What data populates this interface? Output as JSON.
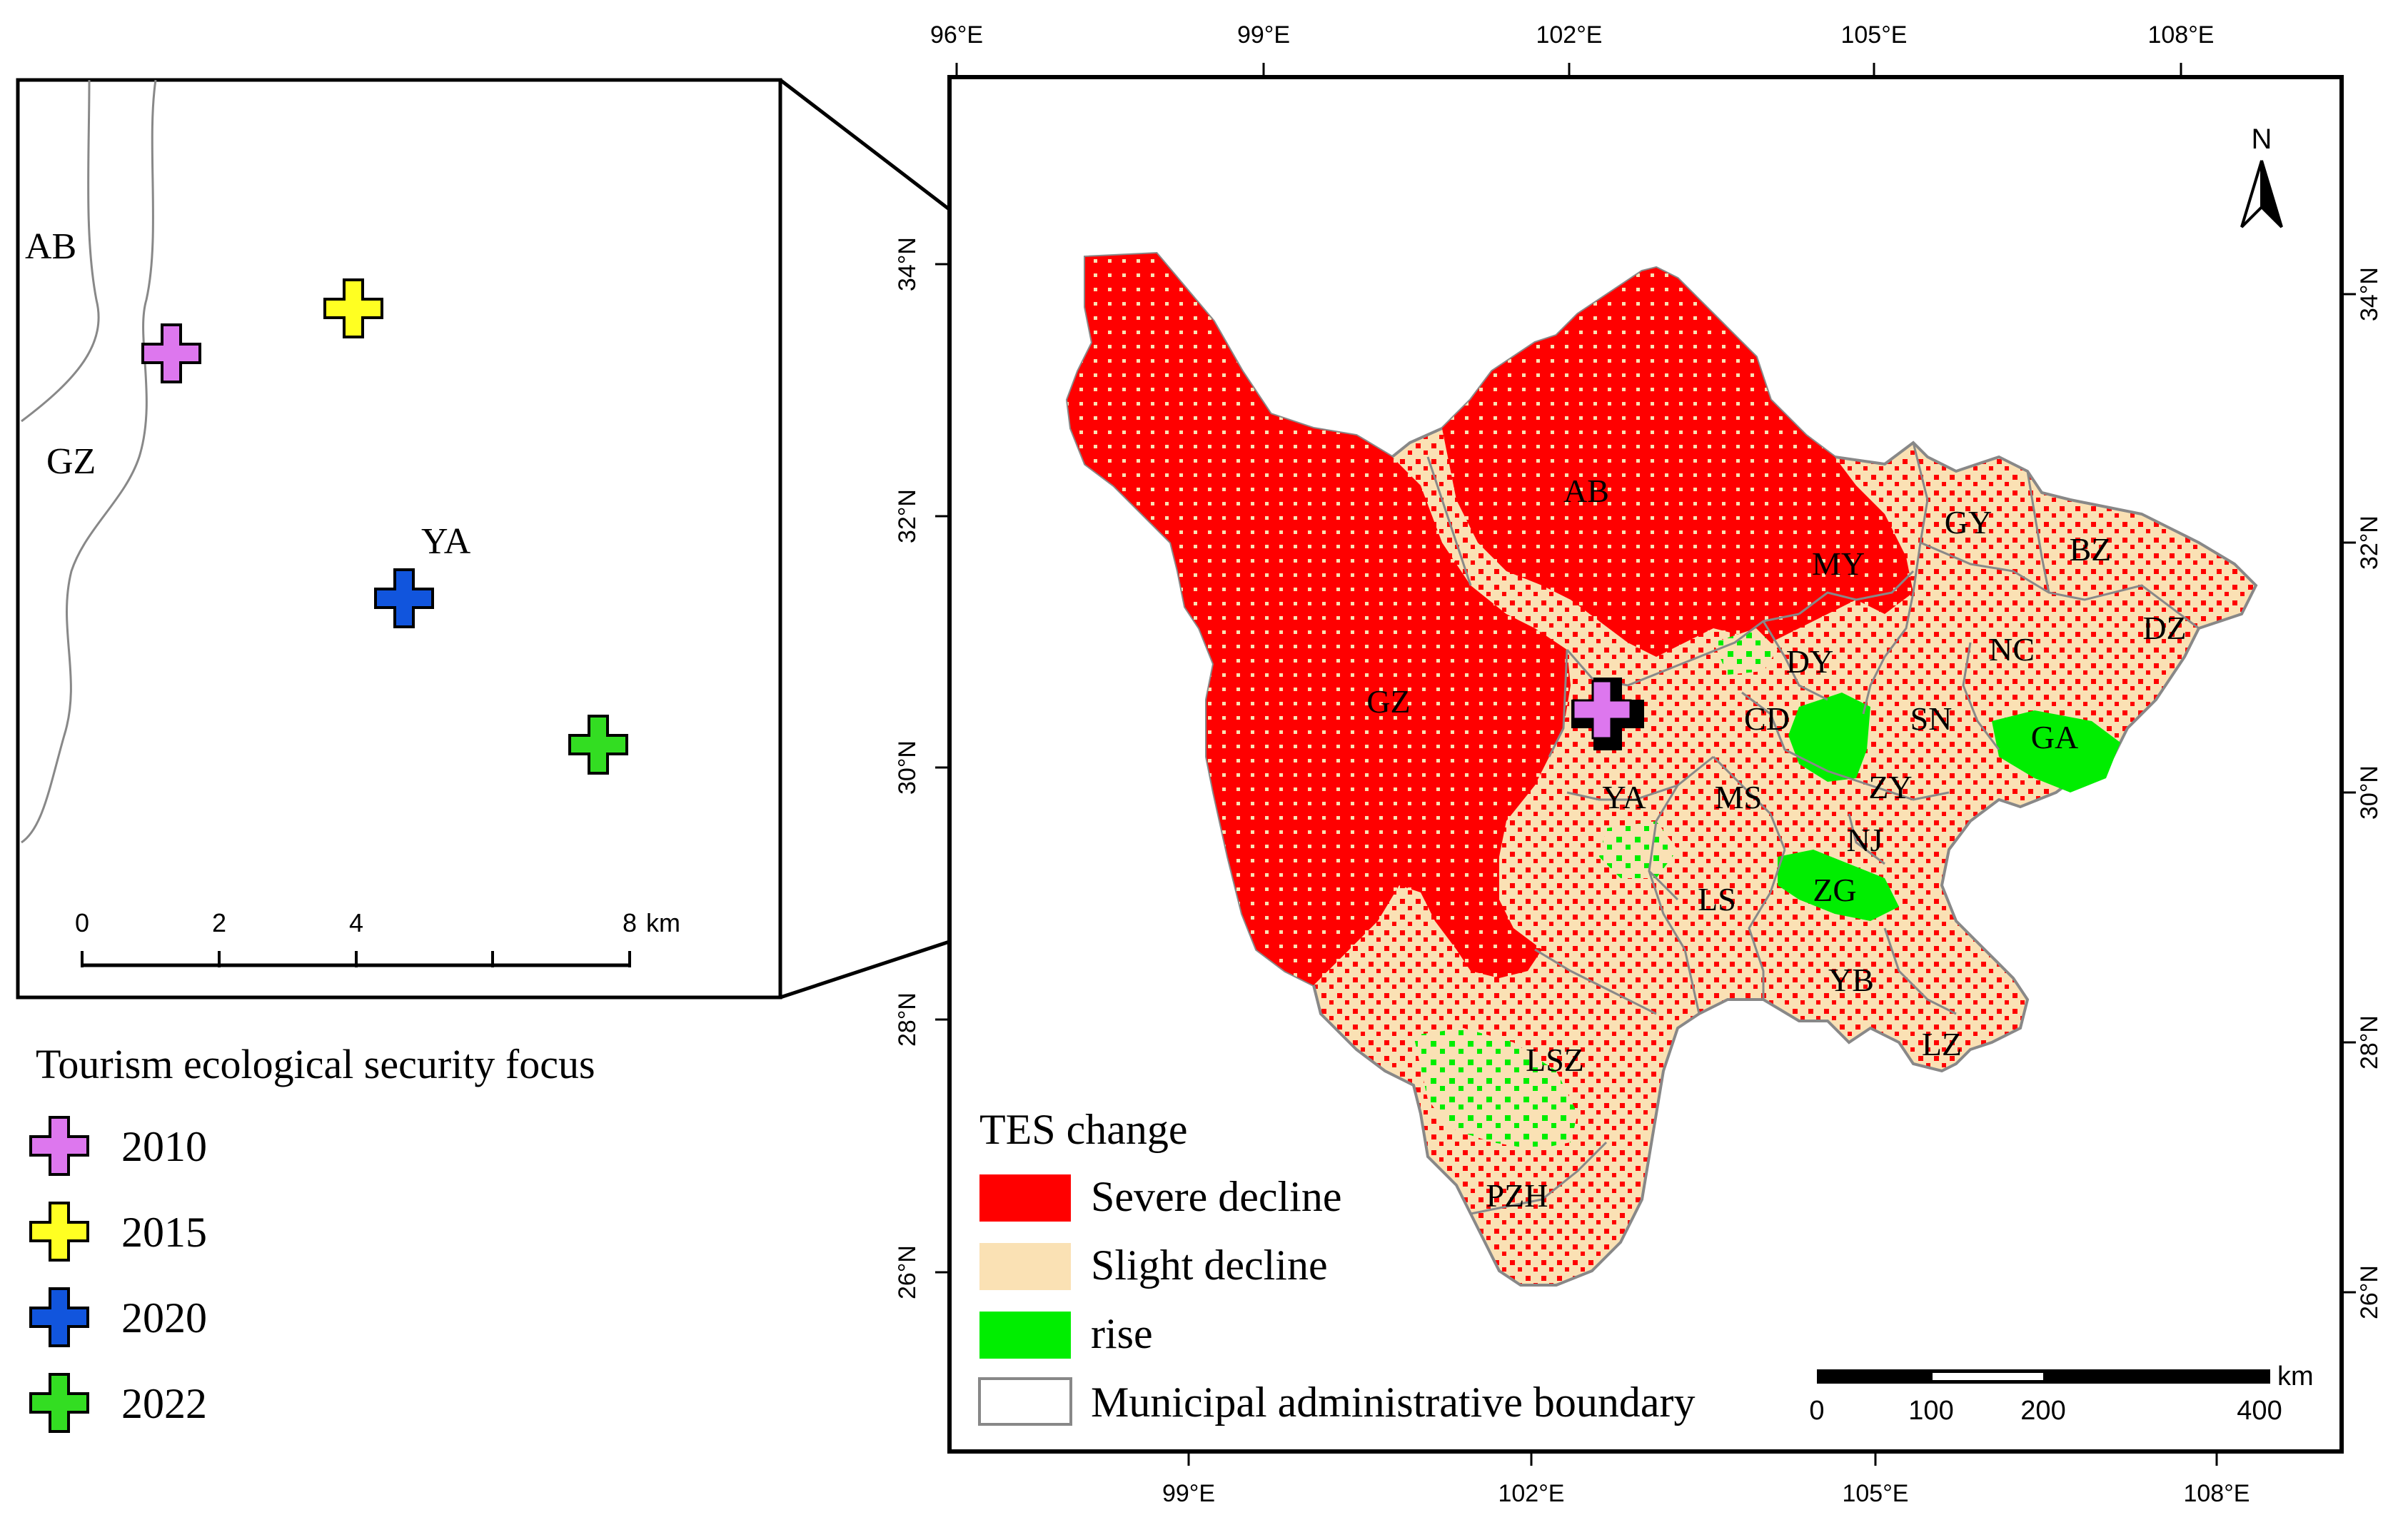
{
  "colors": {
    "severe_decline": "#ff0000",
    "slight_decline": "#fae1b4",
    "rise": "#00ee00",
    "boundary": "#888888",
    "focus_2010": "#dd77ee",
    "focus_2015": "#ffff22",
    "focus_2020": "#1155dd",
    "focus_2022": "#33dd22"
  },
  "map": {
    "north_label": "N",
    "graticule": {
      "top_longitudes": [
        "96°E",
        "99°E",
        "102°E",
        "105°E",
        "108°E"
      ],
      "bottom_longitudes": [
        "99°E",
        "102°E",
        "105°E",
        "108°E"
      ],
      "left_latitudes": [
        "34°N",
        "32°N",
        "30°N",
        "28°N",
        "26°N"
      ],
      "right_latitudes": [
        "34°N",
        "32°N",
        "30°N",
        "28°N",
        "26°N"
      ]
    },
    "regions": [
      {
        "code": "AB"
      },
      {
        "code": "GY"
      },
      {
        "code": "BZ"
      },
      {
        "code": "MY"
      },
      {
        "code": "DZ"
      },
      {
        "code": "NC"
      },
      {
        "code": "DY"
      },
      {
        "code": "GZ"
      },
      {
        "code": "CD"
      },
      {
        "code": "SN"
      },
      {
        "code": "GA"
      },
      {
        "code": "ZY"
      },
      {
        "code": "YA"
      },
      {
        "code": "MS"
      },
      {
        "code": "NJ"
      },
      {
        "code": "LS"
      },
      {
        "code": "ZG"
      },
      {
        "code": "YB"
      },
      {
        "code": "LZ"
      },
      {
        "code": "LSZ"
      },
      {
        "code": "PZH"
      }
    ],
    "legend": {
      "title": "TES change",
      "items": [
        {
          "label": "Severe decline"
        },
        {
          "label": "Slight decline"
        },
        {
          "label": "rise"
        },
        {
          "label": "Municipal administrative boundary"
        }
      ]
    },
    "scalebar": {
      "unit": "km",
      "ticks": [
        "0",
        "100",
        "200",
        "400"
      ]
    }
  },
  "inset": {
    "labels": [
      "AB",
      "GZ",
      "YA"
    ],
    "scalebar": {
      "unit": "km",
      "ticks": [
        "0",
        "2",
        "4",
        "8"
      ]
    }
  },
  "focus_legend": {
    "title": "Tourism ecological security focus",
    "years": [
      "2010",
      "2015",
      "2020",
      "2022"
    ]
  }
}
